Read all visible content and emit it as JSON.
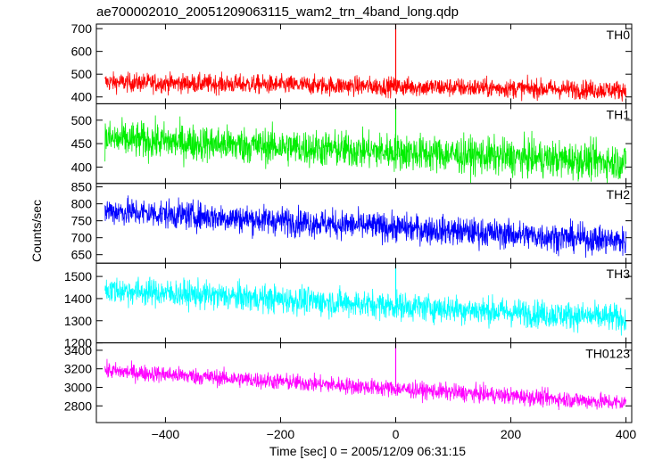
{
  "chart_data": {
    "type": "line",
    "title": "ae700002010_20051209063115_wam2_trn_4band_long.qdp",
    "xlabel": "Time [sec] 0 = 2005/12/09 06:31:15",
    "ylabel": "Counts/sec",
    "xlim": [
      -520,
      410
    ],
    "x_ticks": [
      -400,
      -200,
      0,
      200,
      400
    ],
    "x_start": -505,
    "x_end": 400,
    "grid": false,
    "legend": "none",
    "panels": [
      {
        "name": "TH0",
        "color": "#ff0000",
        "ylim": [
          370,
          720
        ],
        "y_ticks": [
          400,
          500,
          600,
          700
        ],
        "trend_start": 465,
        "trend_end": 430,
        "noise": 30,
        "spike": {
          "x": 0,
          "y": 720
        }
      },
      {
        "name": "TH1",
        "color": "#00ee00",
        "ylim": [
          365,
          535
        ],
        "y_ticks": [
          400,
          450,
          500
        ],
        "trend_start": 460,
        "trend_end": 410,
        "noise": 28,
        "spike": {
          "x": 0,
          "y": 530
        }
      },
      {
        "name": "TH2",
        "color": "#0000ff",
        "ylim": [
          625,
          860
        ],
        "y_ticks": [
          650,
          700,
          750,
          800,
          850
        ],
        "trend_start": 780,
        "trend_end": 690,
        "noise": 30,
        "spike": null
      },
      {
        "name": "TH3",
        "color": "#00ffff",
        "ylim": [
          1200,
          1560
        ],
        "y_ticks": [
          1200,
          1300,
          1400,
          1500
        ],
        "trend_start": 1440,
        "trend_end": 1310,
        "noise": 45,
        "spike": {
          "x": 0,
          "y": 1560
        }
      },
      {
        "name": "TH0123",
        "color": "#ff00ff",
        "ylim": [
          2620,
          3480
        ],
        "y_ticks": [
          2800,
          3000,
          3200,
          3400
        ],
        "trend_start": 3180,
        "trend_end": 2830,
        "noise": 65,
        "spike": {
          "x": 0,
          "y": 3480
        }
      }
    ]
  }
}
